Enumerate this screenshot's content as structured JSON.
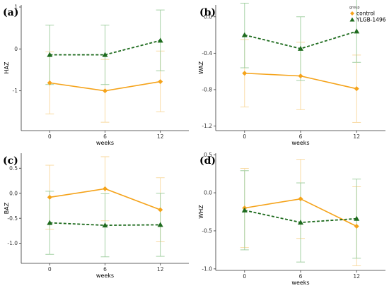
{
  "colors": {
    "control": "#F5A31A",
    "treatment": "#1E6B1E",
    "treatment_err": "#9ACB9A",
    "control_err": "#F8D79A"
  },
  "legend": {
    "title": "group",
    "items": [
      {
        "label": "control",
        "marker": "diamond",
        "color": "#F5A31A"
      },
      {
        "label": "YLGB-1496",
        "marker": "triangle",
        "color": "#1E6B1E"
      }
    ]
  },
  "chart_data": [
    {
      "type": "line",
      "panel_label": "(a)",
      "xlabel": "weeks",
      "ylabel": "HAZ",
      "x": [
        "0",
        "6",
        "12"
      ],
      "ylim": [
        -1.95,
        1.05
      ],
      "yticks": [
        -1,
        0,
        1
      ],
      "ytick_labels": [
        "-1",
        "0",
        "1"
      ],
      "series": [
        {
          "name": "control",
          "values": [
            -0.81,
            -1.0,
            -0.78
          ],
          "lower": [
            -1.55,
            -1.75,
            -1.5
          ],
          "upper": [
            -0.07,
            -0.25,
            -0.05
          ],
          "style": "solid"
        },
        {
          "name": "YLGB-1496",
          "values": [
            -0.14,
            -0.14,
            0.2
          ],
          "lower": [
            -0.85,
            -0.85,
            -0.52
          ],
          "upper": [
            0.57,
            0.57,
            0.93
          ],
          "style": "dashed"
        }
      ]
    },
    {
      "type": "line",
      "panel_label": "(b)",
      "xlabel": "weeks",
      "ylabel": "WAZ",
      "x": [
        "0",
        "6",
        "12"
      ],
      "ylim": [
        -1.25,
        0.13
      ],
      "yticks": [
        -1.2,
        -0.8,
        -0.4,
        0.0
      ],
      "ytick_labels": [
        "-1.2",
        "-0.8",
        "-0.4",
        "0.0"
      ],
      "series": [
        {
          "name": "control",
          "values": [
            -0.62,
            -0.65,
            -0.79
          ],
          "lower": [
            -0.99,
            -1.02,
            -1.16
          ],
          "upper": [
            -0.25,
            -0.28,
            -0.42
          ],
          "style": "solid"
        },
        {
          "name": "YLGB-1496",
          "values": [
            -0.2,
            -0.35,
            -0.16
          ],
          "lower": [
            -0.56,
            -0.7,
            -0.5
          ],
          "upper": [
            0.15,
            0.0,
            0.2
          ],
          "style": "dashed"
        }
      ]
    },
    {
      "type": "line",
      "panel_label": "(c)",
      "xlabel": "weeks",
      "ylabel": "BAZ",
      "x": [
        "0",
        "6",
        "12"
      ],
      "ylim": [
        -1.4,
        0.8
      ],
      "yticks": [
        -1.0,
        -0.5,
        0.0,
        0.5
      ],
      "ytick_labels": [
        "-1.0",
        "-0.5",
        "0.0",
        "0.5"
      ],
      "series": [
        {
          "name": "control",
          "values": [
            -0.08,
            0.09,
            -0.33
          ],
          "lower": [
            -0.72,
            -0.55,
            -0.97
          ],
          "upper": [
            0.56,
            0.73,
            0.31
          ],
          "style": "solid"
        },
        {
          "name": "YLGB-1496",
          "values": [
            -0.59,
            -0.64,
            -0.63
          ],
          "lower": [
            -1.22,
            -1.27,
            -1.26
          ],
          "upper": [
            0.04,
            -0.01,
            0.0
          ],
          "style": "dashed"
        }
      ]
    },
    {
      "type": "line",
      "panel_label": "(d)",
      "xlabel": "weeks",
      "ylabel": "WHZ",
      "x": [
        "0",
        "6",
        "12"
      ],
      "ylim": [
        -1.02,
        0.52
      ],
      "yticks": [
        -1.0,
        -0.5,
        0.0,
        0.5
      ],
      "ytick_labels": [
        "-1.0",
        "-0.5",
        "0.0",
        "0.5"
      ],
      "series": [
        {
          "name": "control",
          "values": [
            -0.2,
            -0.08,
            -0.44
          ],
          "lower": [
            -0.72,
            -0.6,
            -0.96
          ],
          "upper": [
            0.32,
            0.44,
            0.08
          ],
          "style": "solid"
        },
        {
          "name": "YLGB-1496",
          "values": [
            -0.23,
            -0.39,
            -0.34
          ],
          "lower": [
            -0.75,
            -0.91,
            -0.86
          ],
          "upper": [
            0.29,
            0.13,
            0.18
          ],
          "style": "dashed"
        }
      ]
    }
  ]
}
